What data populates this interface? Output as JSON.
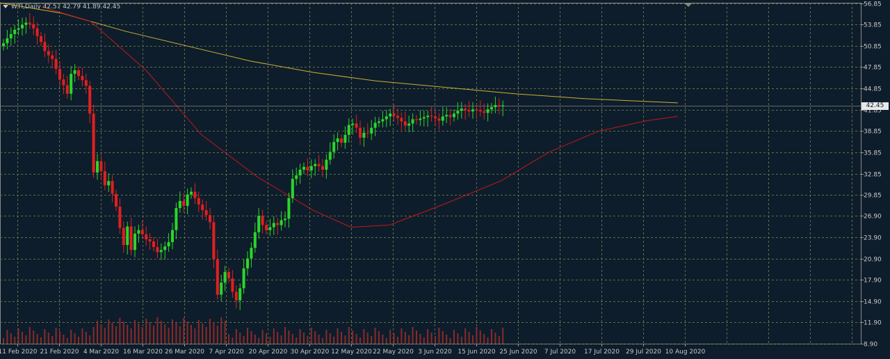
{
  "header": {
    "symbol_label": "WTI,Daily",
    "ohlc_text": "42.57 42.79 41.89 42.45"
  },
  "current_price": {
    "label": "42.45",
    "value": 42.45
  },
  "colors": {
    "background": "#0e1d2b",
    "grid": "#5e6f4c",
    "bull": "#2bd62b",
    "bear": "#e02020",
    "ma_long": "#c9b234",
    "ma_mid": "#c41818",
    "volume": "#8a2a2a",
    "axis_text": "#c9c9c9"
  },
  "chart_data": {
    "type": "candlestick",
    "title": "WTI,Daily",
    "ylim": [
      8.9,
      56.9
    ],
    "y_ticks": [
      "56.85",
      "53.85",
      "50.85",
      "47.85",
      "44.85",
      "41.85",
      "38.85",
      "35.85",
      "32.85",
      "29.85",
      "26.90",
      "23.90",
      "20.90",
      "17.90",
      "14.90",
      "11.90",
      "8.90"
    ],
    "y_tick_values": [
      56.85,
      53.85,
      50.85,
      47.85,
      44.85,
      41.85,
      38.85,
      35.85,
      32.85,
      29.85,
      26.9,
      23.9,
      20.9,
      17.9,
      14.9,
      11.9,
      8.9
    ],
    "x_labels": [
      "11 Feb 2020",
      "21 Feb 2020",
      "4 Mar 2020",
      "16 Mar 2020",
      "26 Mar 2020",
      "7 Apr 2020",
      "20 Apr 2020",
      "30 Apr 2020",
      "12 May 2020",
      "22 May 2020",
      "3 Jun 2020",
      "15 Jun 2020",
      "25 Jun 2020",
      "7 Jul 2020",
      "17 Jul 2020",
      "29 Jul 2020",
      "10 Aug 2020"
    ],
    "closes": [
      51.2,
      51.9,
      52.5,
      53.1,
      53.3,
      53.8,
      54.1,
      53.9,
      53.3,
      52.2,
      51.4,
      50.1,
      49.5,
      49.0,
      47.6,
      46.1,
      45.3,
      44.1,
      46.9,
      47.4,
      46.6,
      46.0,
      45.2,
      41.3,
      33.0,
      34.6,
      33.2,
      31.2,
      31.8,
      30.0,
      28.2,
      25.2,
      22.8,
      25.4,
      22.1,
      24.4,
      24.9,
      24.3,
      23.6,
      23.3,
      22.5,
      21.8,
      22.1,
      22.6,
      23.2,
      24.9,
      28.0,
      29.0,
      28.3,
      29.9,
      30.3,
      29.4,
      28.5,
      27.7,
      27.0,
      26.0,
      20.8,
      15.8,
      17.5,
      19.0,
      18.1,
      16.2,
      15.0,
      16.7,
      19.5,
      20.9,
      22.4,
      24.6,
      26.9,
      25.6,
      24.9,
      25.3,
      25.9,
      25.6,
      26.3,
      26.5,
      29.4,
      32.1,
      32.6,
      33.4,
      33.8,
      33.3,
      33.9,
      34.2,
      33.9,
      33.4,
      34.8,
      35.9,
      37.3,
      37.8,
      37.2,
      38.3,
      39.7,
      39.9,
      39.3,
      37.9,
      38.6,
      38.5,
      39.3,
      40.0,
      40.2,
      40.5,
      40.9,
      41.3,
      41.0,
      40.7,
      40.2,
      39.6,
      39.9,
      40.5,
      40.4,
      40.6,
      40.8,
      41.0,
      40.9,
      40.6,
      40.3,
      40.9,
      41.1,
      40.8,
      41.3,
      41.7,
      42.0,
      41.8,
      41.6,
      41.9,
      41.8,
      41.6,
      41.4,
      41.9,
      42.2,
      42.5,
      42.3,
      42.45
    ],
    "ma_long": [
      [
        0,
        56.9
      ],
      [
        90,
        55.4
      ],
      [
        180,
        52.9
      ],
      [
        270,
        50.8
      ],
      [
        360,
        48.7
      ],
      [
        450,
        47.1
      ],
      [
        540,
        45.9
      ],
      [
        640,
        45.0
      ],
      [
        740,
        44.1
      ],
      [
        840,
        43.4
      ],
      [
        975,
        42.8
      ]
    ],
    "ma_mid": [
      [
        60,
        56.3
      ],
      [
        130,
        54.3
      ],
      [
        210,
        47.4
      ],
      [
        290,
        38.3
      ],
      [
        370,
        32.4
      ],
      [
        450,
        27.7
      ],
      [
        505,
        25.3
      ],
      [
        560,
        25.6
      ],
      [
        640,
        28.6
      ],
      [
        720,
        31.8
      ],
      [
        790,
        35.9
      ],
      [
        860,
        38.8
      ],
      [
        930,
        40.3
      ],
      [
        975,
        40.9
      ]
    ]
  }
}
